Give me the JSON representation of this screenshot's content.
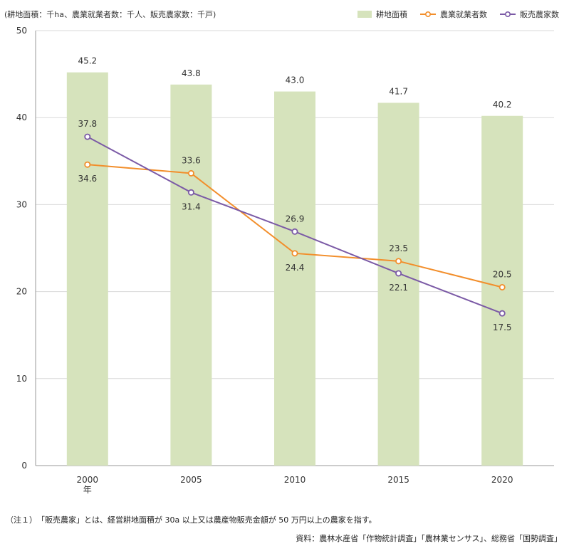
{
  "unit_label": "(耕地面積：千ha、農業就業者数：千人、販売農家数：千戸)",
  "legend": [
    {
      "name": "耕地面積",
      "kind": "bar",
      "color": "#d6e3bc"
    },
    {
      "name": "農業就業者数",
      "kind": "line",
      "color": "#f28e2b"
    },
    {
      "name": "販売農家数",
      "kind": "line",
      "color": "#7b5aa6"
    }
  ],
  "chart_data": {
    "type": "bar",
    "categories": [
      "2000",
      "2005",
      "2010",
      "2015",
      "2020"
    ],
    "category_suffix": "年",
    "ylim": [
      0,
      50
    ],
    "yticks": [
      0,
      10,
      20,
      30,
      40,
      50
    ],
    "grid": true,
    "legend_position": "top-right",
    "series": [
      {
        "name": "耕地面積",
        "type": "bar",
        "color": "#d6e3bc",
        "values": [
          45.2,
          43.8,
          43.0,
          41.7,
          40.2
        ],
        "labels": [
          "45.2",
          "43.8",
          "43.0",
          "41.7",
          "40.2"
        ]
      },
      {
        "name": "農業就業者数",
        "type": "line",
        "color": "#f28e2b",
        "values": [
          34.6,
          33.6,
          24.4,
          23.5,
          20.5
        ],
        "labels": [
          "34.6",
          "33.6",
          "24.4",
          "23.5",
          "20.5"
        ]
      },
      {
        "name": "販売農家数",
        "type": "line",
        "color": "#7b5aa6",
        "values": [
          37.8,
          31.4,
          26.9,
          22.1,
          17.5
        ],
        "labels": [
          "37.8",
          "31.4",
          "26.9",
          "22.1",
          "17.5"
        ]
      }
    ]
  },
  "note": "（注１）　「販売農家」とは、経営耕地面積が 30a 以上又は農産物販売金額が 50 万円以上の農家を指す。",
  "source": "資料：農林水産省「作物統計調査」「農林業センサス」、総務省「国勢調査」"
}
